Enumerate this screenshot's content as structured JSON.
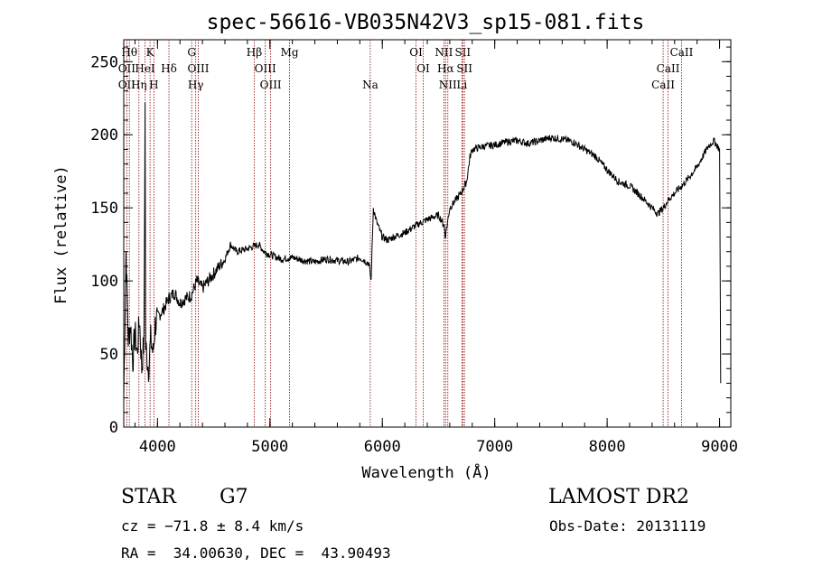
{
  "chart_data": {
    "type": "line",
    "title": "spec-56616-VB035N42V3_sp15-081.fits",
    "xlabel": "Wavelength (Å)",
    "ylabel": "Flux (relative)",
    "xlim": [
      3700,
      9100
    ],
    "ylim": [
      0,
      265
    ],
    "x_ticks": [
      4000,
      5000,
      6000,
      7000,
      8000,
      9000
    ],
    "y_ticks": [
      0,
      50,
      100,
      150,
      200,
      250
    ],
    "grid": false,
    "series_color": "#000000",
    "line_marker_color": "#8b0000",
    "spectral_lines": [
      {
        "label": "OII",
        "wavelength": 3727,
        "row": 3
      },
      {
        "label": "Hθ",
        "wavelength": 3750,
        "row": 1
      },
      {
        "label": "OII",
        "wavelength": 3727,
        "row": 2
      },
      {
        "label": "Hη",
        "wavelength": 3835,
        "row": 3
      },
      {
        "label": "HeI",
        "wavelength": 3889,
        "row": 2
      },
      {
        "label": "K",
        "wavelength": 3934,
        "row": 1
      },
      {
        "label": "H",
        "wavelength": 3968,
        "row": 3
      },
      {
        "label": "Hδ",
        "wavelength": 4102,
        "row": 2
      },
      {
        "label": "G",
        "wavelength": 4304,
        "row": 1
      },
      {
        "label": "OIII",
        "wavelength": 4363,
        "row": 2
      },
      {
        "label": "Hγ",
        "wavelength": 4340,
        "row": 3
      },
      {
        "label": "Hβ",
        "wavelength": 4861,
        "row": 1
      },
      {
        "label": "OIII",
        "wavelength": 4959,
        "row": 2
      },
      {
        "label": "OIII",
        "wavelength": 5007,
        "row": 3
      },
      {
        "label": "Mg",
        "wavelength": 5175,
        "row": 1
      },
      {
        "label": "Na",
        "wavelength": 5893,
        "row": 3
      },
      {
        "label": "OI",
        "wavelength": 6300,
        "row": 1
      },
      {
        "label": "OI",
        "wavelength": 6364,
        "row": 2
      },
      {
        "label": "NII",
        "wavelength": 6548,
        "row": 1
      },
      {
        "label": "Hα",
        "wavelength": 6563,
        "row": 2
      },
      {
        "label": "NII",
        "wavelength": 6583,
        "row": 3
      },
      {
        "label": "SII",
        "wavelength": 6716,
        "row": 1
      },
      {
        "label": "SII",
        "wavelength": 6731,
        "row": 2
      },
      {
        "label": "Li",
        "wavelength": 6708,
        "row": 3
      },
      {
        "label": "CaII",
        "wavelength": 8662,
        "row": 1
      },
      {
        "label": "CaII",
        "wavelength": 8542,
        "row": 2
      },
      {
        "label": "CaII",
        "wavelength": 8498,
        "row": 3
      }
    ],
    "spectrum_anchor_points": [
      [
        3700,
        20
      ],
      [
        3720,
        120
      ],
      [
        3740,
        60
      ],
      [
        3760,
        70
      ],
      [
        3780,
        45
      ],
      [
        3800,
        65
      ],
      [
        3820,
        50
      ],
      [
        3840,
        75
      ],
      [
        3860,
        40
      ],
      [
        3880,
        60
      ],
      [
        3890,
        220
      ],
      [
        3895,
        55
      ],
      [
        3920,
        40
      ],
      [
        3940,
        60
      ],
      [
        3960,
        50
      ],
      [
        3980,
        70
      ],
      [
        4000,
        75
      ],
      [
        4050,
        80
      ],
      [
        4100,
        88
      ],
      [
        4150,
        92
      ],
      [
        4200,
        85
      ],
      [
        4250,
        88
      ],
      [
        4300,
        90
      ],
      [
        4350,
        100
      ],
      [
        4400,
        95
      ],
      [
        4500,
        105
      ],
      [
        4600,
        115
      ],
      [
        4650,
        125
      ],
      [
        4700,
        120
      ],
      [
        4800,
        122
      ],
      [
        4900,
        125
      ],
      [
        4950,
        120
      ],
      [
        5000,
        118
      ],
      [
        5100,
        115
      ],
      [
        5200,
        116
      ],
      [
        5300,
        114
      ],
      [
        5400,
        113
      ],
      [
        5500,
        115
      ],
      [
        5600,
        114
      ],
      [
        5700,
        113
      ],
      [
        5800,
        116
      ],
      [
        5880,
        112
      ],
      [
        5900,
        100
      ],
      [
        5920,
        150
      ],
      [
        5950,
        140
      ],
      [
        6000,
        130
      ],
      [
        6050,
        128
      ],
      [
        6100,
        130
      ],
      [
        6200,
        133
      ],
      [
        6300,
        138
      ],
      [
        6400,
        142
      ],
      [
        6500,
        145
      ],
      [
        6550,
        138
      ],
      [
        6560,
        130
      ],
      [
        6600,
        150
      ],
      [
        6650,
        155
      ],
      [
        6700,
        160
      ],
      [
        6750,
        168
      ],
      [
        6780,
        185
      ],
      [
        6800,
        190
      ],
      [
        6900,
        192
      ],
      [
        7000,
        193
      ],
      [
        7100,
        195
      ],
      [
        7200,
        196
      ],
      [
        7300,
        194
      ],
      [
        7400,
        196
      ],
      [
        7500,
        198
      ],
      [
        7600,
        197
      ],
      [
        7700,
        195
      ],
      [
        7800,
        190
      ],
      [
        7900,
        185
      ],
      [
        8000,
        176
      ],
      [
        8100,
        168
      ],
      [
        8200,
        165
      ],
      [
        8300,
        158
      ],
      [
        8400,
        150
      ],
      [
        8450,
        146
      ],
      [
        8500,
        150
      ],
      [
        8550,
        156
      ],
      [
        8600,
        160
      ],
      [
        8700,
        168
      ],
      [
        8800,
        178
      ],
      [
        8900,
        192
      ],
      [
        8950,
        196
      ],
      [
        9000,
        190
      ],
      [
        9010,
        30
      ]
    ]
  },
  "footer": {
    "object_class": "STAR",
    "subclass": "G7",
    "survey": "LAMOST DR2",
    "redshift": "cz = −71.8 ± 8.4 km/s",
    "obs_date": "Obs-Date: 20131119",
    "coords": "RA =  34.00630, DEC =  43.90493"
  }
}
